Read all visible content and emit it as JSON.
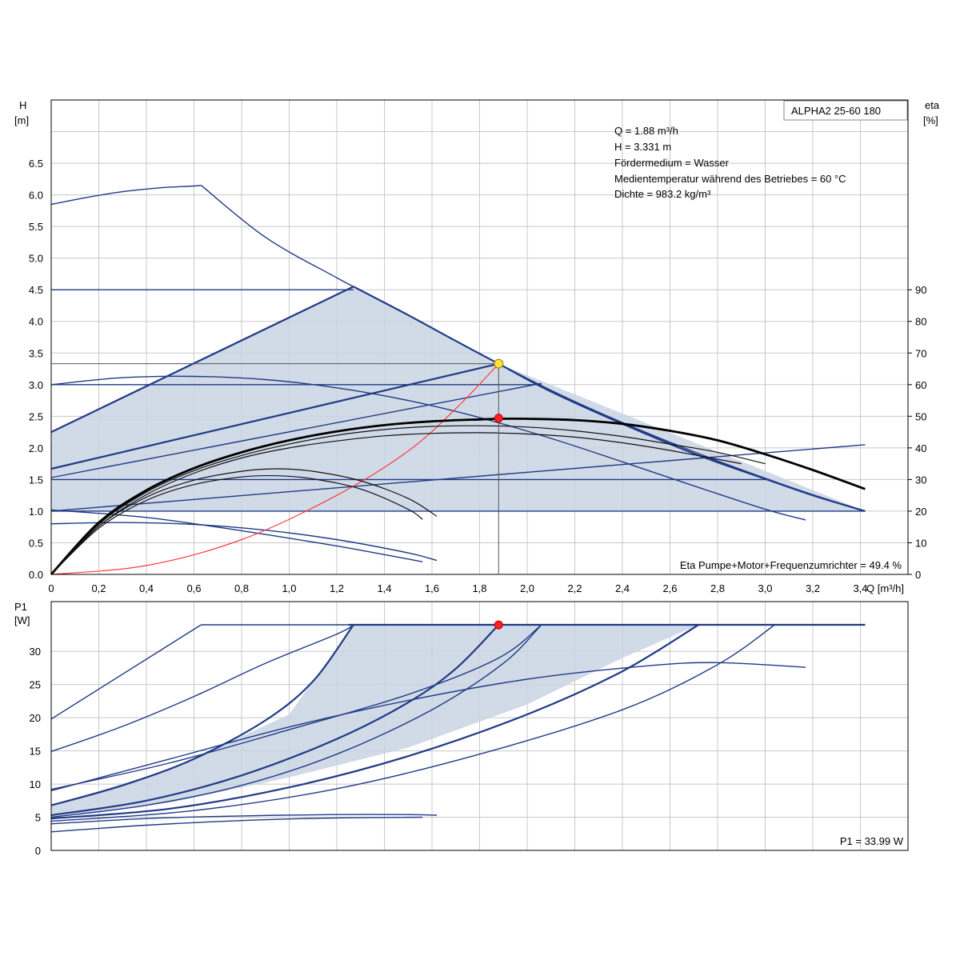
{
  "chart_data": [
    {
      "type": "line",
      "title": "ALPHA2 25-60 180",
      "xlabel": "Q [m³/h]",
      "ylabel_unit": "H",
      "ylabel_bracket": "[m]",
      "y2label_unit": "eta",
      "y2label_bracket": "[%]",
      "xlim": [
        0,
        3.6
      ],
      "ylim": [
        0,
        7.5
      ],
      "y2lim": [
        0,
        150
      ],
      "x_tick_labels": [
        "0",
        "0,2",
        "0,4",
        "0,6",
        "0,8",
        "1,0",
        "1,2",
        "1,4",
        "1,6",
        "1,8",
        "2,0",
        "2,2",
        "2,4",
        "2,6",
        "2,8",
        "3,0",
        "3,2",
        "3,4"
      ],
      "y_tick_labels": [
        "0.0",
        "0.5",
        "1.0",
        "1.5",
        "2.0",
        "2.5",
        "3.0",
        "3.5",
        "4.0",
        "4.5",
        "5.0",
        "5.5",
        "6.0",
        "6.5"
      ],
      "y2_tick_labels": [
        "0",
        "10",
        "20",
        "30",
        "40",
        "50",
        "60",
        "70",
        "80",
        "90"
      ],
      "info_lines": [
        "Q = 1.88 m³/h",
        "H = 3.331 m",
        "Fördermedium = Wasser",
        "Medientemperatur während des Betriebes = 60 °C",
        "Dichte = 983.2 kg/m³"
      ],
      "eta_label": "Eta Pumpe+Motor+Frequenzumrichter = 49.4 %",
      "operating_point": {
        "Q": 1.88,
        "H": 3.331,
        "eta": 49.4
      },
      "region": {
        "outer": [
          [
            0,
            2.25
          ],
          [
            1.27,
            4.55
          ],
          [
            1.88,
            3.33
          ],
          [
            3.42,
            1.0
          ],
          [
            0,
            1.0
          ]
        ],
        "inner": [
          [
            0,
            1.0
          ],
          [
            0,
            1.53
          ],
          [
            2.06,
            3.02
          ],
          [
            3.42,
            1.0
          ]
        ]
      },
      "series": [
        {
          "style": "blue",
          "x": [
            0,
            0.15,
            0.3,
            0.45,
            0.6,
            0.63
          ],
          "y": [
            5.85,
            5.96,
            6.05,
            6.11,
            6.14,
            6.15
          ]
        },
        {
          "style": "blue",
          "x": [
            0.63,
            0.9,
            1.2,
            1.5,
            1.8,
            2.1,
            2.4,
            2.7,
            3.0,
            3.2,
            3.42
          ],
          "y": [
            6.15,
            5.33,
            4.69,
            4.1,
            3.49,
            2.91,
            2.4,
            1.94,
            1.52,
            1.26,
            1.0
          ]
        },
        {
          "style": "blue",
          "x": [
            0,
            1.27
          ],
          "y": [
            4.5,
            4.5
          ]
        },
        {
          "style": "blue",
          "x": [
            0,
            2.06
          ],
          "y": [
            3.0,
            3.0
          ]
        },
        {
          "style": "blue",
          "x": [
            0,
            3.02
          ],
          "y": [
            1.5,
            1.5
          ]
        },
        {
          "style": "blue-bold",
          "x": [
            0,
            1.27
          ],
          "y": [
            2.25,
            4.55
          ]
        },
        {
          "style": "blue-bold",
          "x": [
            1.27,
            1.5,
            1.7,
            1.88,
            2.1,
            2.4,
            2.7,
            3.0,
            3.2,
            3.42
          ],
          "y": [
            4.55,
            4.1,
            3.69,
            3.33,
            2.89,
            2.38,
            1.91,
            1.51,
            1.25,
            1.0
          ]
        },
        {
          "style": "blue-bold",
          "x": [
            0,
            1.88
          ],
          "y": [
            1.67,
            3.33
          ]
        },
        {
          "style": "blue",
          "x": [
            0,
            2.06
          ],
          "y": [
            1.53,
            3.02
          ]
        },
        {
          "style": "blue",
          "x": [
            0,
            3.42
          ],
          "y": [
            1.0,
            1.0
          ]
        },
        {
          "style": "blue",
          "x": [
            0,
            3.42
          ],
          "y": [
            1.0,
            2.05
          ]
        },
        {
          "style": "blue",
          "x": [
            0,
            0.3,
            0.6,
            0.9,
            1.2,
            1.5,
            1.8,
            2.1,
            2.4,
            2.7,
            3.0,
            3.17
          ],
          "y": [
            3.0,
            3.11,
            3.13,
            3.08,
            2.95,
            2.75,
            2.48,
            2.15,
            1.78,
            1.4,
            1.03,
            0.86
          ]
        },
        {
          "style": "blue",
          "x": [
            0,
            0.3,
            0.6,
            0.9,
            1.2,
            1.5,
            1.62
          ],
          "y": [
            0.8,
            0.82,
            0.79,
            0.7,
            0.55,
            0.34,
            0.22
          ]
        },
        {
          "style": "blue",
          "x": [
            0,
            0.4,
            0.8,
            1.2,
            1.56
          ],
          "y": [
            1.02,
            0.9,
            0.69,
            0.45,
            0.2
          ]
        },
        {
          "style": "red",
          "x": [
            0,
            0.4,
            0.8,
            1.2,
            1.5,
            1.7,
            1.88
          ],
          "y": [
            0.0,
            0.14,
            0.55,
            1.25,
            1.95,
            2.62,
            3.33
          ]
        },
        {
          "style": "black-bold",
          "x": [
            0,
            0.2,
            0.4,
            0.6,
            0.8,
            1.0,
            1.2,
            1.4,
            1.6,
            1.8,
            1.88,
            2.0,
            2.2,
            2.4,
            2.6,
            2.8,
            3.0,
            3.2,
            3.42
          ],
          "y": [
            0,
            0.82,
            1.33,
            1.68,
            1.93,
            2.12,
            2.26,
            2.36,
            2.42,
            2.45,
            2.46,
            2.46,
            2.44,
            2.38,
            2.27,
            2.12,
            1.9,
            1.65,
            1.35
          ]
        },
        {
          "style": "black",
          "x": [
            0,
            0.2,
            0.4,
            0.6,
            0.8,
            1.0,
            1.2,
            1.4,
            1.6,
            1.8,
            2.0,
            2.2,
            2.4,
            2.6,
            2.9
          ],
          "y": [
            0,
            0.76,
            1.26,
            1.6,
            1.84,
            2.0,
            2.11,
            2.19,
            2.23,
            2.24,
            2.22,
            2.17,
            2.08,
            1.96,
            1.75
          ]
        },
        {
          "style": "black",
          "x": [
            0,
            0.2,
            0.4,
            0.6,
            0.8,
            1.0,
            1.2,
            1.4,
            1.6,
            1.8,
            2.0,
            2.2,
            2.4,
            2.6,
            2.8,
            3.0
          ],
          "y": [
            0,
            0.79,
            1.3,
            1.64,
            1.88,
            2.06,
            2.2,
            2.29,
            2.34,
            2.35,
            2.33,
            2.27,
            2.18,
            2.06,
            1.93,
            1.75
          ]
        },
        {
          "style": "black",
          "x": [
            0,
            0.2,
            0.4,
            0.6,
            0.8,
            0.95,
            1.1,
            1.3,
            1.5,
            1.62
          ],
          "y": [
            0,
            0.76,
            1.22,
            1.49,
            1.63,
            1.67,
            1.63,
            1.48,
            1.2,
            0.92
          ]
        },
        {
          "style": "black",
          "x": [
            0,
            0.2,
            0.4,
            0.6,
            0.8,
            0.95,
            1.1,
            1.3,
            1.5,
            1.56
          ],
          "y": [
            0,
            0.73,
            1.17,
            1.42,
            1.54,
            1.56,
            1.51,
            1.35,
            1.03,
            0.87
          ]
        }
      ]
    },
    {
      "type": "line",
      "ylabel_unit": "P1",
      "ylabel_bracket": "[W]",
      "xlim": [
        0,
        3.6
      ],
      "ylim": [
        0,
        37.5
      ],
      "y_tick_labels": [
        "0",
        "5",
        "10",
        "15",
        "20",
        "25",
        "30"
      ],
      "p1_label": "P1 = 33.99 W",
      "operating_point": {
        "Q": 1.88,
        "P1": 33.99
      },
      "region": {
        "outer": [
          [
            0,
            6.8
          ],
          [
            0.5,
            12.2
          ],
          [
            1.0,
            20.5
          ],
          [
            1.27,
            34
          ],
          [
            3.42,
            34
          ],
          [
            2.72,
            34
          ],
          [
            2.4,
            29
          ],
          [
            2.0,
            22
          ],
          [
            1.5,
            15.5
          ],
          [
            1.0,
            11
          ],
          [
            0.5,
            7.2
          ],
          [
            0,
            5.0
          ]
        ]
      },
      "series": [
        {
          "style": "blue",
          "x": [
            0,
            0.63
          ],
          "y": [
            19.8,
            34
          ]
        },
        {
          "style": "blue",
          "x": [
            0.63,
            3.42
          ],
          "y": [
            34,
            34
          ]
        },
        {
          "style": "blue",
          "x": [
            0,
            0.3,
            0.6,
            0.9,
            1.2,
            1.27
          ],
          "y": [
            14.9,
            18.7,
            23.2,
            28.2,
            32.6,
            34
          ]
        },
        {
          "style": "blue-bold",
          "x": [
            0,
            0.3,
            0.6,
            0.9,
            1.1,
            1.27
          ],
          "y": [
            6.8,
            9.8,
            13.8,
            19.6,
            25.5,
            34
          ]
        },
        {
          "style": "blue-bold",
          "x": [
            1.25,
            3.42
          ],
          "y": [
            34,
            34
          ]
        },
        {
          "style": "blue-bold",
          "x": [
            0,
            0.4,
            0.8,
            1.2,
            1.5,
            1.7,
            1.88
          ],
          "y": [
            5.3,
            7.5,
            11.3,
            16.8,
            22.3,
            27.4,
            34
          ]
        },
        {
          "style": "blue",
          "x": [
            0,
            0.4,
            0.8,
            1.2,
            1.6,
            1.9,
            2.06
          ],
          "y": [
            5.0,
            6.8,
            9.8,
            14.5,
            21.2,
            28.2,
            34
          ]
        },
        {
          "style": "blue-bold",
          "x": [
            0,
            0.5,
            1.0,
            1.5,
            2.0,
            2.4,
            2.72
          ],
          "y": [
            4.8,
            6.3,
            9.5,
            14.2,
            20.5,
            27.0,
            34
          ]
        },
        {
          "style": "blue",
          "x": [
            0,
            0.6,
            1.2,
            1.8,
            2.4,
            2.8,
            3.04
          ],
          "y": [
            4.4,
            6.0,
            9.3,
            14.5,
            21.2,
            28.0,
            34
          ]
        },
        {
          "style": "blue",
          "x": [
            0,
            0.5,
            1.0,
            1.5,
            1.88,
            2.06
          ],
          "y": [
            9.2,
            13.2,
            18.2,
            23.5,
            29.0,
            34
          ]
        },
        {
          "style": "blue",
          "x": [
            0,
            0.5,
            1.0,
            1.5,
            2.0,
            2.5,
            2.8,
            3.17
          ],
          "y": [
            9.0,
            13.8,
            18.6,
            22.6,
            25.8,
            27.8,
            28.3,
            27.6
          ]
        },
        {
          "style": "blue",
          "x": [
            0,
            0.4,
            0.8,
            1.2,
            1.5,
            1.62
          ],
          "y": [
            4.0,
            4.8,
            5.2,
            5.4,
            5.4,
            5.3
          ]
        },
        {
          "style": "blue",
          "x": [
            0,
            0.4,
            0.8,
            1.2,
            1.56
          ],
          "y": [
            2.8,
            3.8,
            4.5,
            4.9,
            5.0
          ]
        }
      ]
    }
  ]
}
